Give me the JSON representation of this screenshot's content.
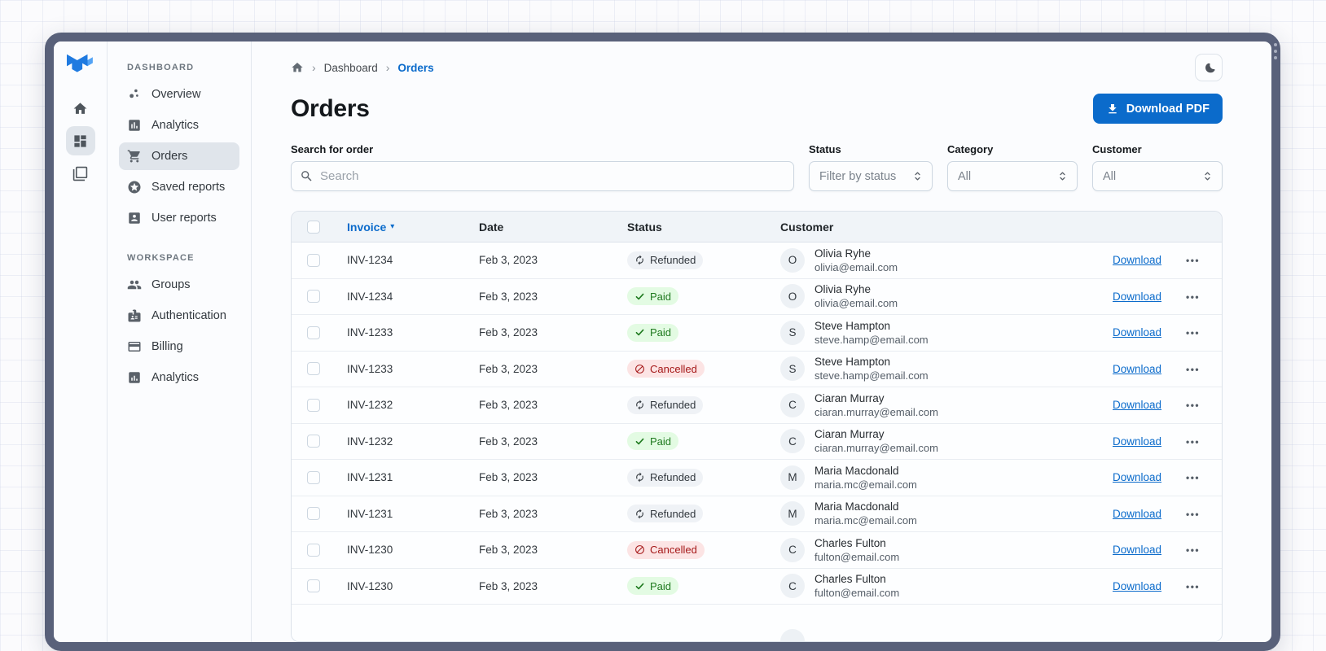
{
  "icon_rail": {
    "items": [
      {
        "name": "home"
      },
      {
        "name": "dashboard",
        "selected": true
      },
      {
        "name": "layers"
      }
    ]
  },
  "sidebar": {
    "sections": [
      {
        "label": "DASHBOARD",
        "items": [
          {
            "label": "Overview"
          },
          {
            "label": "Analytics"
          },
          {
            "label": "Orders",
            "selected": true
          },
          {
            "label": "Saved reports"
          },
          {
            "label": "User reports"
          }
        ]
      },
      {
        "label": "WORKSPACE",
        "items": [
          {
            "label": "Groups"
          },
          {
            "label": "Authentication"
          },
          {
            "label": "Billing"
          },
          {
            "label": "Analytics"
          }
        ]
      }
    ]
  },
  "breadcrumb": {
    "items": [
      "Dashboard",
      "Orders"
    ]
  },
  "header": {
    "title": "Orders",
    "download_button": "Download PDF"
  },
  "filters": {
    "search": {
      "label": "Search for order",
      "placeholder": "Search"
    },
    "selects": [
      {
        "label": "Status",
        "value": "Filter by status"
      },
      {
        "label": "Category",
        "value": "All"
      },
      {
        "label": "Customer",
        "value": "All"
      }
    ]
  },
  "table": {
    "columns": [
      "Invoice",
      "Date",
      "Status",
      "Customer"
    ],
    "download_label": "Download",
    "menu_dots": "•••",
    "sort_caret": "▾",
    "rows": [
      {
        "invoice": "INV-1234",
        "date": "Feb 3, 2023",
        "status": "Refunded",
        "customer": {
          "initial": "O",
          "name": "Olivia Ryhe",
          "email": "olivia@email.com"
        }
      },
      {
        "invoice": "INV-1234",
        "date": "Feb 3, 2023",
        "status": "Paid",
        "customer": {
          "initial": "O",
          "name": "Olivia Ryhe",
          "email": "olivia@email.com"
        }
      },
      {
        "invoice": "INV-1233",
        "date": "Feb 3, 2023",
        "status": "Paid",
        "customer": {
          "initial": "S",
          "name": "Steve Hampton",
          "email": "steve.hamp@email.com"
        }
      },
      {
        "invoice": "INV-1233",
        "date": "Feb 3, 2023",
        "status": "Cancelled",
        "customer": {
          "initial": "S",
          "name": "Steve Hampton",
          "email": "steve.hamp@email.com"
        }
      },
      {
        "invoice": "INV-1232",
        "date": "Feb 3, 2023",
        "status": "Refunded",
        "customer": {
          "initial": "C",
          "name": "Ciaran Murray",
          "email": "ciaran.murray@email.com"
        }
      },
      {
        "invoice": "INV-1232",
        "date": "Feb 3, 2023",
        "status": "Paid",
        "customer": {
          "initial": "C",
          "name": "Ciaran Murray",
          "email": "ciaran.murray@email.com"
        }
      },
      {
        "invoice": "INV-1231",
        "date": "Feb 3, 2023",
        "status": "Refunded",
        "customer": {
          "initial": "M",
          "name": "Maria Macdonald",
          "email": "maria.mc@email.com"
        }
      },
      {
        "invoice": "INV-1231",
        "date": "Feb 3, 2023",
        "status": "Refunded",
        "customer": {
          "initial": "M",
          "name": "Maria Macdonald",
          "email": "maria.mc@email.com"
        }
      },
      {
        "invoice": "INV-1230",
        "date": "Feb 3, 2023",
        "status": "Cancelled",
        "customer": {
          "initial": "C",
          "name": "Charles Fulton",
          "email": "fulton@email.com"
        }
      },
      {
        "invoice": "INV-1230",
        "date": "Feb 3, 2023",
        "status": "Paid",
        "customer": {
          "initial": "C",
          "name": "Charles Fulton",
          "email": "fulton@email.com"
        }
      }
    ]
  },
  "colors": {
    "primary": "#0B6BCB",
    "frame": "#59617A",
    "status": {
      "Paid": {
        "bg": "#E3FBE3",
        "fg": "#1F7A1F"
      },
      "Refunded": {
        "bg": "#EFF2F6",
        "fg": "#32383E"
      },
      "Cancelled": {
        "bg": "#FCE4E4",
        "fg": "#A51818"
      }
    }
  }
}
